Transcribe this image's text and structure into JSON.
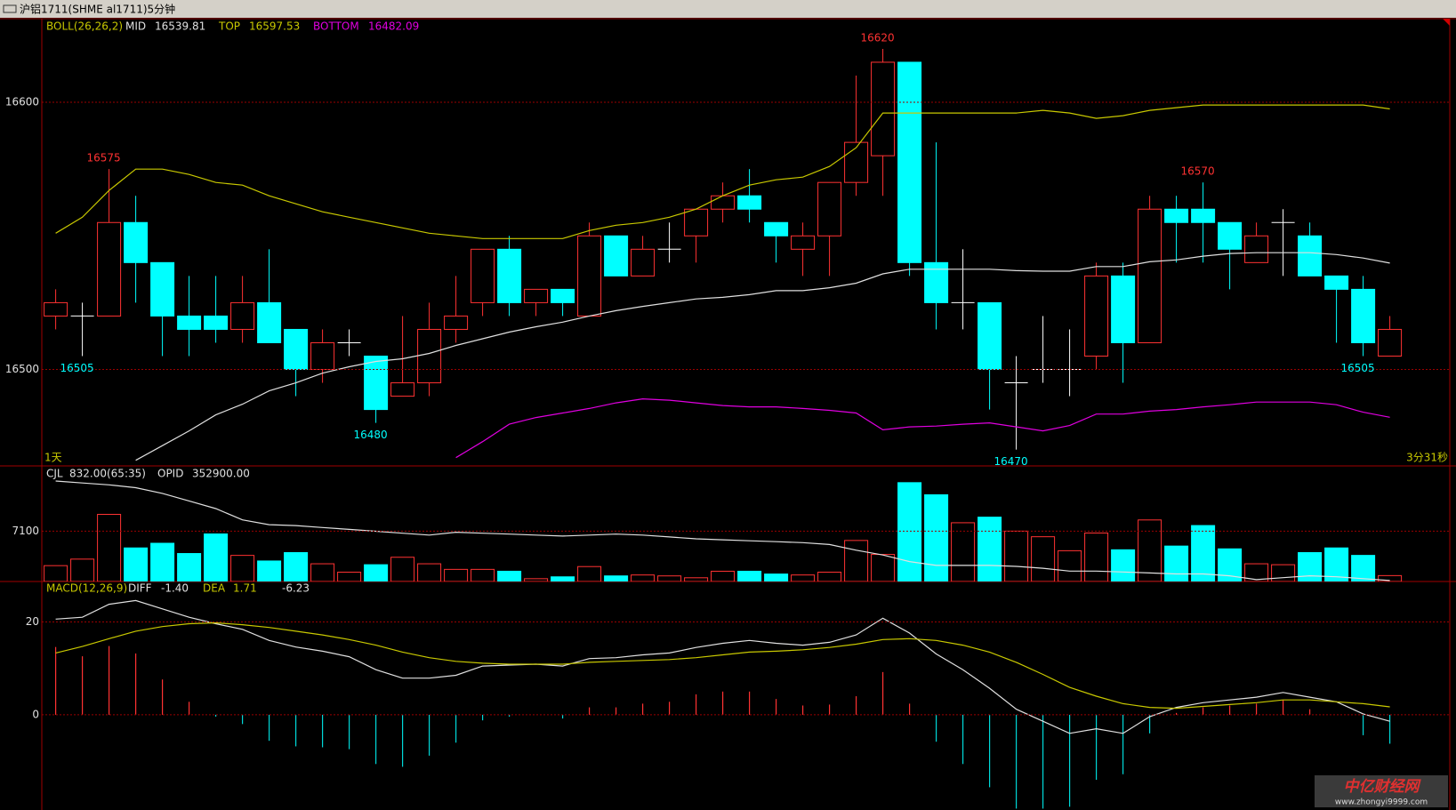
{
  "window_title": "沪铝1711(SHME al1711)5分钟",
  "watermark": {
    "name": "中亿财经网",
    "url": "www.zhongyi9999.com"
  },
  "chart_data": [
    {
      "type": "candlestick",
      "title": "BOLL(26,26,2)",
      "footer_left": "1天",
      "footer_right": "3分31秒",
      "up_color": "#ff3232",
      "down_color": "#00ffff",
      "doji_color": "#ffffff",
      "grid": true,
      "ylim": [
        16463.9,
        16631.3
      ],
      "yticks": [
        16500,
        16600
      ],
      "open": [
        16520,
        16520,
        16520,
        16555,
        16540,
        16520,
        16520,
        16515,
        16525,
        16515,
        16500,
        16510,
        16505,
        16490,
        16495,
        16515,
        16525,
        16545,
        16525,
        16530,
        16520,
        16550,
        16535,
        16545,
        16550,
        16560,
        16565,
        16555,
        16545,
        16550,
        16570,
        16580,
        16615,
        16540,
        16525,
        16525,
        16495,
        16500,
        16500,
        16505,
        16535,
        16510,
        16560,
        16560,
        16555,
        16540,
        16555,
        16550,
        16535,
        16530,
        16505
      ],
      "high": [
        16530,
        16525,
        16575,
        16565,
        16540,
        16535,
        16535,
        16535,
        16545,
        16515,
        16515,
        16515,
        16505,
        16520,
        16525,
        16535,
        16545,
        16550,
        16530,
        16530,
        16555,
        16550,
        16550,
        16555,
        16560,
        16570,
        16575,
        16555,
        16555,
        16570,
        16610,
        16620,
        16615,
        16585,
        16545,
        16525,
        16505,
        16520,
        16515,
        16540,
        16540,
        16565,
        16565,
        16570,
        16555,
        16555,
        16560,
        16555,
        16535,
        16535,
        16520
      ],
      "low": [
        16515,
        16505,
        16520,
        16525,
        16505,
        16505,
        16510,
        16510,
        16510,
        16490,
        16495,
        16505,
        16480,
        16490,
        16490,
        16510,
        16520,
        16520,
        16520,
        16520,
        16520,
        16535,
        16535,
        16540,
        16540,
        16555,
        16555,
        16540,
        16535,
        16535,
        16565,
        16565,
        16535,
        16515,
        16515,
        16485,
        16470,
        16495,
        16490,
        16500,
        16495,
        16510,
        16540,
        16540,
        16530,
        16540,
        16535,
        16535,
        16510,
        16505,
        16505
      ],
      "close": [
        16525,
        16520,
        16555,
        16540,
        16520,
        16515,
        16515,
        16525,
        16510,
        16500,
        16510,
        16510,
        16485,
        16495,
        16515,
        16520,
        16545,
        16525,
        16530,
        16525,
        16550,
        16535,
        16545,
        16545,
        16560,
        16565,
        16560,
        16550,
        16550,
        16570,
        16585,
        16615,
        16540,
        16525,
        16525,
        16500,
        16495,
        16500,
        16500,
        16535,
        16510,
        16560,
        16555,
        16555,
        16545,
        16550,
        16555,
        16535,
        16530,
        16510,
        16515
      ],
      "series": [
        {
          "name": "MID",
          "color": "#e0e0e0",
          "values": [
            null,
            null,
            null,
            16466,
            16471.5,
            16477,
            16483,
            16487,
            16492,
            16495,
            16498.6,
            16501,
            16503,
            16504,
            16506,
            16509,
            16511.5,
            16514,
            16516,
            16517.7,
            16520,
            16522,
            16523.6,
            16525,
            16526.4,
            16527,
            16528,
            16529.5,
            16529.5,
            16530.6,
            16532.3,
            16535.8,
            16537.5,
            16537.5,
            16537.5,
            16537.5,
            16537,
            16536.8,
            16536.8,
            16538.5,
            16538.5,
            16540.3,
            16541,
            16542.4,
            16543.4,
            16543.7,
            16543.7,
            16543.7,
            16543,
            16541.7,
            16539.81
          ]
        },
        {
          "name": "TOP",
          "color": "#c8c800",
          "values": [
            16551,
            16557,
            16567,
            16575,
            16575,
            16573,
            16570,
            16569,
            16565,
            16562,
            16559,
            16557,
            16555,
            16553,
            16551,
            16550,
            16549,
            16549,
            16549,
            16549,
            16552,
            16554,
            16555,
            16557,
            16560,
            16565,
            16569,
            16571,
            16572,
            16576,
            16583,
            16596,
            16596,
            16596,
            16596,
            16596,
            16596,
            16597,
            16596,
            16594,
            16595,
            16597,
            16598,
            16599,
            16599,
            16599,
            16599,
            16599,
            16599,
            16599,
            16597.53
          ]
        },
        {
          "name": "BOTTOM",
          "color": "#e000e0",
          "values": [
            null,
            null,
            null,
            null,
            null,
            null,
            null,
            null,
            null,
            null,
            null,
            null,
            null,
            null,
            null,
            16467,
            16473,
            16479.5,
            16482,
            16483.7,
            16485.4,
            16487.5,
            16489,
            16488.5,
            16487.5,
            16486.5,
            16486,
            16486,
            16485.4,
            16484.7,
            16483.7,
            16477.4,
            16478.5,
            16478.8,
            16479.5,
            16480,
            16478.5,
            16477,
            16479,
            16483.3,
            16483.3,
            16484.4,
            16485,
            16486,
            16486.8,
            16487.8,
            16487.8,
            16487.8,
            16486.8,
            16484,
            16482.09
          ]
        }
      ],
      "annotations": [
        {
          "label": 16575,
          "index": 2,
          "side": "high"
        },
        {
          "label": 16505,
          "index": 1,
          "side": "low"
        },
        {
          "label": 16480,
          "index": 12,
          "side": "low"
        },
        {
          "label": 16620,
          "index": 31,
          "side": "high"
        },
        {
          "label": 16470,
          "index": 36,
          "side": "low"
        },
        {
          "label": 16570,
          "index": 43,
          "side": "high"
        },
        {
          "label": 16505,
          "index": 49,
          "side": "low"
        }
      ]
    },
    {
      "type": "bar",
      "grid": true,
      "ylim": [
        0,
        16300
      ],
      "yticks": [
        7100
      ],
      "y2lim": [
        352800,
        365000
      ],
      "series": [
        {
          "name": "CJL",
          "readout": "832.00(65:35)",
          "values": [
            2236,
            3156,
            9468,
            4734,
            5392,
            3945,
            6707,
            3682,
            2893,
            4077,
            2499,
            1315,
            2367,
            3419,
            2499,
            1710,
            1710,
            1447,
            395,
            658,
            2104,
            789,
            920,
            789,
            526,
            1447,
            1447,
            1052,
            920,
            1315,
            5786,
            3814,
            13939,
            12230,
            8285,
            9074,
            7101,
            6312,
            4340,
            6838,
            4471,
            8679,
            4997,
            7890,
            4603,
            2499,
            2367,
            4077,
            4734,
            3682,
            832
          ]
        },
        {
          "name": "OPID",
          "readout": "352900.00",
          "axis": "y2",
          "color": "#e0e0e0",
          "values": [
            363400,
            363200,
            363000,
            362700,
            362100,
            361300,
            360500,
            359300,
            358800,
            358700,
            358500,
            358300,
            358100,
            357900,
            357700,
            358000,
            357900,
            357800,
            357700,
            357600,
            357700,
            357800,
            357700,
            357500,
            357300,
            357200,
            357100,
            357000,
            356900,
            356700,
            356100,
            355600,
            354900,
            354500,
            354500,
            354500,
            354400,
            354200,
            353900,
            353900,
            353800,
            353700,
            353600,
            353600,
            353400,
            353000,
            353200,
            353400,
            353300,
            353100,
            352900
          ]
        }
      ]
    },
    {
      "type": "line",
      "title": "MACD(12,26,9)",
      "grid": true,
      "ylim": [
        -20.5,
        28.7
      ],
      "yticks": [
        0,
        20
      ],
      "up_color": "#ff3232",
      "down_color": "#00d8d8",
      "series": [
        {
          "name": "DIFF",
          "readout": "-1.40",
          "color": "#e0e0e0",
          "values": [
            20.6,
            21,
            23.8,
            24.6,
            22.8,
            21,
            19.6,
            18.4,
            16,
            14.6,
            13.7,
            12.5,
            9.7,
            7.9,
            7.9,
            8.5,
            10.5,
            10.7,
            10.9,
            10.5,
            12.1,
            12.3,
            12.9,
            13.3,
            14.5,
            15.4,
            16,
            15.4,
            15,
            15.6,
            17.2,
            20.8,
            17.6,
            13.1,
            9.7,
            5.7,
            1.2,
            -1.4,
            -4,
            -3,
            -4,
            -0.4,
            1.6,
            2.6,
            3.2,
            3.8,
            4.8,
            3.8,
            2.8,
            0.2,
            -1.4
          ]
        },
        {
          "name": "DEA",
          "readout": "1.71",
          "color": "#c8c800",
          "values": [
            13.3,
            14.7,
            16.4,
            18,
            19,
            19.6,
            19.8,
            19.4,
            18.8,
            18,
            17.2,
            16.2,
            15,
            13.5,
            12.3,
            11.5,
            11.1,
            10.9,
            10.9,
            10.9,
            11.3,
            11.5,
            11.7,
            11.9,
            12.3,
            12.9,
            13.5,
            13.7,
            14,
            14.5,
            15.2,
            16.2,
            16.4,
            16,
            15,
            13.5,
            11.3,
            8.7,
            5.9,
            4,
            2.4,
            1.6,
            1.4,
            1.8,
            2.2,
            2.6,
            3.2,
            3.2,
            2.8,
            2.4,
            1.71
          ]
        },
        {
          "style": "histogram",
          "readout": "-6.23",
          "values": [
            14.6,
            12.6,
            14.8,
            13.2,
            7.6,
            2.8,
            -0.4,
            -2,
            -5.6,
            -6.8,
            -7,
            -7.4,
            -10.6,
            -11.2,
            -8.8,
            -6,
            -1.2,
            -0.4,
            0,
            -0.8,
            1.6,
            1.6,
            2.4,
            2.8,
            4.4,
            5,
            5,
            3.4,
            2,
            2.2,
            4,
            9.2,
            2.4,
            -5.8,
            -10.6,
            -15.6,
            -20.2,
            -20.2,
            -19.8,
            -14,
            -12.8,
            -4,
            0.4,
            1.6,
            2,
            2.4,
            3.2,
            1.2,
            0,
            -4.4,
            -6.23
          ]
        }
      ]
    }
  ]
}
